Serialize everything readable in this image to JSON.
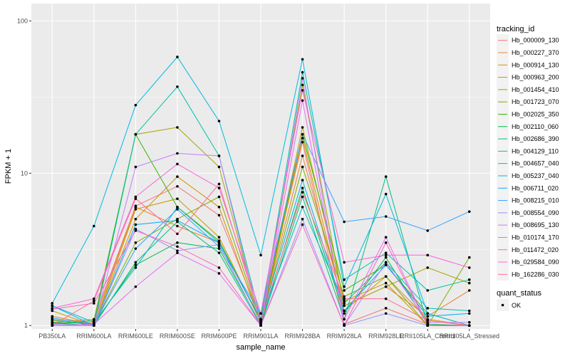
{
  "chart_data": {
    "type": "line",
    "ylabel": "FPKM + 1",
    "xlabel": "sample_name",
    "y_scale": "log10",
    "ylim": [
      0.95,
      130
    ],
    "y_ticks": [
      1,
      10,
      100
    ],
    "y_tick_labels": [
      "1",
      "10",
      "100"
    ],
    "grid": true,
    "legend_position": "right",
    "categories": [
      "PB350LA",
      "RRIM600LA",
      "RRIM600LE",
      "RRIM600SE",
      "RRIM600PE",
      "RRIM901LA",
      "RRIM928BA",
      "RRIM928LA",
      "RRIM928LE",
      "RRII105LA_Control",
      "RRII105LA_Stressed"
    ],
    "legend_title": "tracking_id",
    "point_legend_title": "quant_status",
    "point_legend_label": "OK",
    "series": [
      {
        "name": "Hb_000009_130",
        "color": "#F8766D",
        "values": [
          1.05,
          1.1,
          6.1,
          8.2,
          5.3,
          1.1,
          16.0,
          1.02,
          1.3,
          1.02,
          1.0
        ]
      },
      {
        "name": "Hb_000227_370",
        "color": "#EA8331",
        "values": [
          1.03,
          1.05,
          6.0,
          4.5,
          3.5,
          1.08,
          13.0,
          1.35,
          1.8,
          1.15,
          1.7
        ]
      },
      {
        "name": "Hb_000914_130",
        "color": "#D89000",
        "values": [
          1.15,
          1.02,
          5.0,
          9.5,
          6.0,
          1.02,
          17.0,
          1.25,
          2.1,
          1.1,
          1.0
        ]
      },
      {
        "name": "Hb_000963_200",
        "color": "#C09B00",
        "values": [
          1.25,
          1.0,
          5.8,
          6.8,
          3.8,
          1.05,
          20.0,
          1.45,
          1.9,
          1.0,
          1.0
        ]
      },
      {
        "name": "Hb_001454_410",
        "color": "#A3A500",
        "values": [
          1.08,
          1.02,
          18.0,
          20.0,
          11.0,
          1.04,
          38.0,
          1.35,
          1.8,
          2.4,
          1.9
        ]
      },
      {
        "name": "Hb_001723_070",
        "color": "#7CAE00",
        "values": [
          1.0,
          1.02,
          3.5,
          5.0,
          7.0,
          1.06,
          11.0,
          1.55,
          2.1,
          1.0,
          2.8
        ]
      },
      {
        "name": "Hb_002025_350",
        "color": "#39B600",
        "values": [
          1.02,
          1.08,
          18.0,
          6.0,
          3.6,
          1.08,
          18.0,
          1.7,
          2.5,
          1.2,
          1.0
        ]
      },
      {
        "name": "Hb_002110_060",
        "color": "#00BB4E",
        "values": [
          1.05,
          1.03,
          2.5,
          3.5,
          3.2,
          1.02,
          8.0,
          1.2,
          2.8,
          1.02,
          1.0
        ]
      },
      {
        "name": "Hb_002686_390",
        "color": "#00BF7D",
        "values": [
          1.04,
          1.0,
          2.6,
          4.8,
          3.0,
          1.0,
          7.0,
          1.1,
          9.5,
          1.0,
          1.0
        ]
      },
      {
        "name": "Hb_004129_110",
        "color": "#00C1A3",
        "values": [
          1.1,
          1.0,
          18.0,
          37.0,
          13.0,
          1.1,
          46.0,
          2.0,
          3.0,
          1.7,
          2.0
        ]
      },
      {
        "name": "Hb_004657_040",
        "color": "#00BFC4",
        "values": [
          1.35,
          1.05,
          2.4,
          6.0,
          3.5,
          1.1,
          6.0,
          1.4,
          2.6,
          1.3,
          1.25
        ]
      },
      {
        "name": "Hb_005237_040",
        "color": "#00BAE0",
        "values": [
          1.4,
          4.5,
          28.0,
          58.0,
          22.0,
          2.9,
          56.0,
          1.8,
          7.3,
          1.2,
          1.0
        ]
      },
      {
        "name": "Hb_006711_020",
        "color": "#00B0F6",
        "values": [
          1.35,
          1.0,
          4.6,
          4.9,
          3.5,
          1.1,
          9.0,
          1.25,
          2.5,
          1.15,
          1.2
        ]
      },
      {
        "name": "Hb_008215_010",
        "color": "#35A2FF",
        "values": [
          1.12,
          1.02,
          3.2,
          5.8,
          3.3,
          1.2,
          18.0,
          4.8,
          5.2,
          4.2,
          5.6
        ]
      },
      {
        "name": "Hb_008554_090",
        "color": "#9590FF",
        "values": [
          1.02,
          1.0,
          4.3,
          3.1,
          3.4,
          1.0,
          5.0,
          1.0,
          1.2,
          1.0,
          1.0
        ]
      },
      {
        "name": "Hb_008695_130",
        "color": "#C77CFF",
        "values": [
          1.0,
          1.0,
          11.0,
          13.5,
          13.0,
          1.0,
          42.0,
          1.0,
          2.6,
          1.05,
          1.05
        ]
      },
      {
        "name": "Hb_010174_170",
        "color": "#E76BF3",
        "values": [
          1.0,
          1.02,
          1.8,
          3.0,
          2.2,
          1.0,
          30.0,
          1.1,
          3.8,
          1.0,
          1.0
        ]
      },
      {
        "name": "Hb_011472_020",
        "color": "#FA62DB",
        "values": [
          1.3,
          1.5,
          7.0,
          11.5,
          8.0,
          1.2,
          35.0,
          2.6,
          2.9,
          2.9,
          2.4
        ]
      },
      {
        "name": "Hb_029584_090",
        "color": "#FF62BC",
        "values": [
          1.28,
          1.4,
          4.2,
          3.3,
          2.4,
          1.0,
          4.6,
          1.0,
          3.5,
          1.0,
          1.0
        ]
      },
      {
        "name": "Hb_162286_030",
        "color": "#FF6C91",
        "values": [
          1.0,
          1.45,
          6.8,
          4.0,
          8.5,
          1.08,
          7.5,
          1.5,
          1.5,
          1.08,
          1.0
        ]
      }
    ]
  },
  "colors": {
    "panel_background": "#EBEBEB",
    "grid_major": "#FFFFFF",
    "point": "#000000",
    "legend_key_background": "#F2F2F2"
  }
}
